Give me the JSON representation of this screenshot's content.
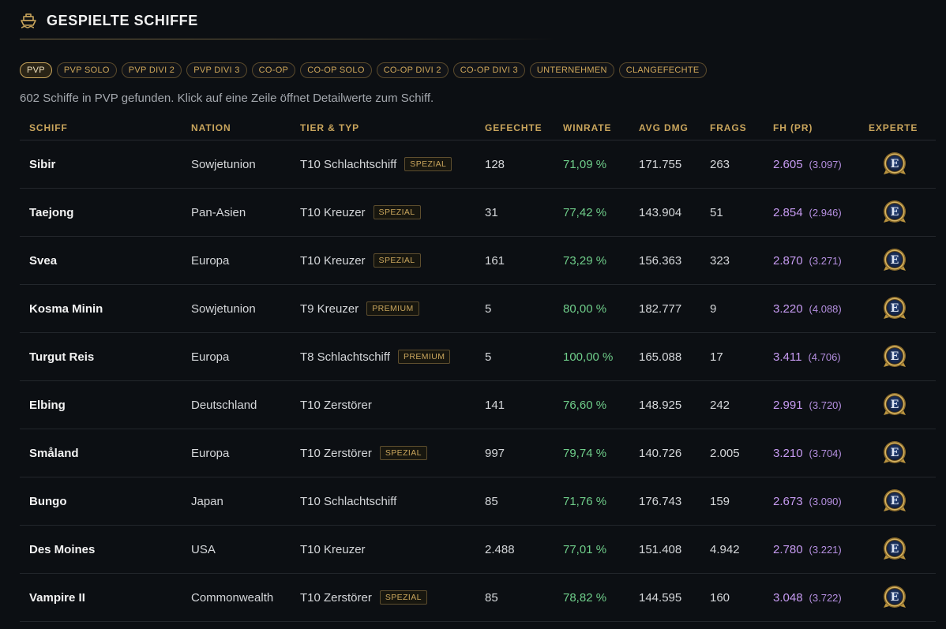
{
  "header": {
    "title": "GESPIELTE SCHIFFE",
    "icon": "ship-icon"
  },
  "filters": [
    {
      "label": "PVP",
      "active": true
    },
    {
      "label": "PVP SOLO",
      "active": false
    },
    {
      "label": "PVP DIVI 2",
      "active": false
    },
    {
      "label": "PVP DIVI 3",
      "active": false
    },
    {
      "label": "CO-OP",
      "active": false
    },
    {
      "label": "CO-OP SOLO",
      "active": false
    },
    {
      "label": "CO-OP DIVI 2",
      "active": false
    },
    {
      "label": "CO-OP DIVI 3",
      "active": false
    },
    {
      "label": "UNTERNEHMEN",
      "active": false
    },
    {
      "label": "CLANGEFECHTE",
      "active": false
    }
  ],
  "summary": "602 Schiffe in PVP gefunden. Klick auf eine Zeile öffnet Detailwerte zum Schiff.",
  "table": {
    "columns": [
      "SCHIFF",
      "NATION",
      "TIER & TYP",
      "GEFECHTE",
      "WINRATE",
      "AVG DMG",
      "FRAGS",
      "FH (PR)",
      "EXPERTE"
    ],
    "rows": [
      {
        "ship": "Sibir",
        "nation": "Sowjetunion",
        "tier": "T10 Schlachtschiff",
        "badge": "SPEZIAL",
        "battles": "128",
        "winrate": "71,09 %",
        "dmg": "171.755",
        "frags": "263",
        "pr": "2.605",
        "pr_sub": "(3.097)",
        "expert": "expert-icon"
      },
      {
        "ship": "Taejong",
        "nation": "Pan-Asien",
        "tier": "T10 Kreuzer",
        "badge": "SPEZIAL",
        "battles": "31",
        "winrate": "77,42 %",
        "dmg": "143.904",
        "frags": "51",
        "pr": "2.854",
        "pr_sub": "(2.946)",
        "expert": "expert-icon"
      },
      {
        "ship": "Svea",
        "nation": "Europa",
        "tier": "T10 Kreuzer",
        "badge": "SPEZIAL",
        "battles": "161",
        "winrate": "73,29 %",
        "dmg": "156.363",
        "frags": "323",
        "pr": "2.870",
        "pr_sub": "(3.271)",
        "expert": "expert-icon"
      },
      {
        "ship": "Kosma Minin",
        "nation": "Sowjetunion",
        "tier": "T9 Kreuzer",
        "badge": "PREMIUM",
        "battles": "5",
        "winrate": "80,00 %",
        "dmg": "182.777",
        "frags": "9",
        "pr": "3.220",
        "pr_sub": "(4.088)",
        "expert": "expert-icon"
      },
      {
        "ship": "Turgut Reis",
        "nation": "Europa",
        "tier": "T8 Schlachtschiff",
        "badge": "PREMIUM",
        "battles": "5",
        "winrate": "100,00 %",
        "dmg": "165.088",
        "frags": "17",
        "pr": "3.411",
        "pr_sub": "(4.706)",
        "expert": "expert-icon"
      },
      {
        "ship": "Elbing",
        "nation": "Deutschland",
        "tier": "T10 Zerstörer",
        "badge": "",
        "battles": "141",
        "winrate": "76,60 %",
        "dmg": "148.925",
        "frags": "242",
        "pr": "2.991",
        "pr_sub": "(3.720)",
        "expert": "expert-icon"
      },
      {
        "ship": "Småland",
        "nation": "Europa",
        "tier": "T10 Zerstörer",
        "badge": "SPEZIAL",
        "battles": "997",
        "winrate": "79,74 %",
        "dmg": "140.726",
        "frags": "2.005",
        "pr": "3.210",
        "pr_sub": "(3.704)",
        "expert": "expert-icon"
      },
      {
        "ship": "Bungo",
        "nation": "Japan",
        "tier": "T10 Schlachtschiff",
        "badge": "",
        "battles": "85",
        "winrate": "71,76 %",
        "dmg": "176.743",
        "frags": "159",
        "pr": "2.673",
        "pr_sub": "(3.090)",
        "expert": "expert-icon"
      },
      {
        "ship": "Des Moines",
        "nation": "USA",
        "tier": "T10 Kreuzer",
        "badge": "",
        "battles": "2.488",
        "winrate": "77,01 %",
        "dmg": "151.408",
        "frags": "4.942",
        "pr": "2.780",
        "pr_sub": "(3.221)",
        "expert": "expert-icon"
      },
      {
        "ship": "Vampire II",
        "nation": "Commonwealth",
        "tier": "T10 Zerstörer",
        "badge": "SPEZIAL",
        "battles": "85",
        "winrate": "78,82 %",
        "dmg": "144.595",
        "frags": "160",
        "pr": "3.048",
        "pr_sub": "(3.722)",
        "expert": "expert-icon"
      }
    ]
  },
  "colors": {
    "accent": "#c9a55c",
    "win": "#6fce8a",
    "pr": "#c79bf2",
    "bg": "#0c0f13"
  }
}
